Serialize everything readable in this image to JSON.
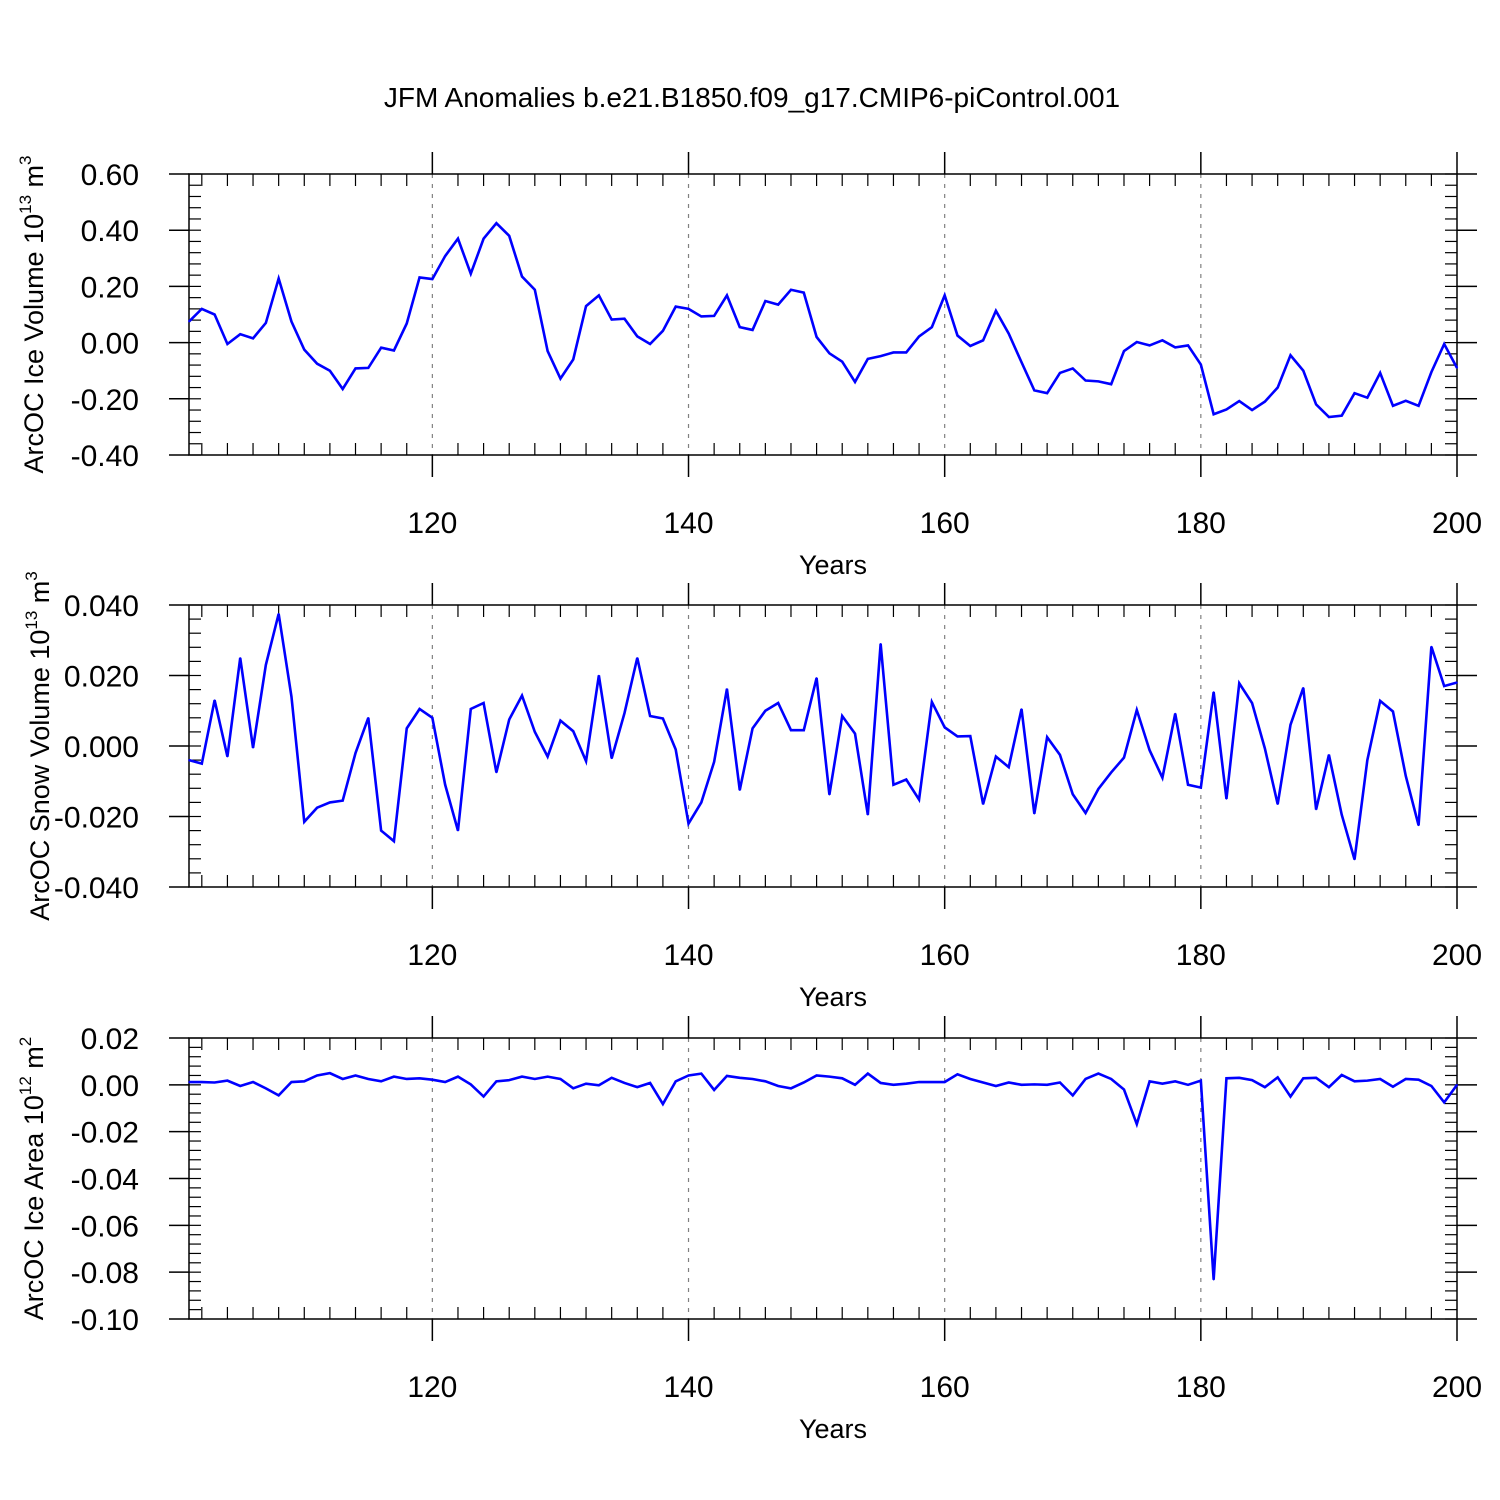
{
  "title": "JFM Anomalies b.e21.B1850.f09_g17.CMIP6-piControl.001",
  "colors": {
    "line": "#0000ff",
    "axis": "#000000",
    "grid": "#808080"
  },
  "chart_data": [
    {
      "type": "line",
      "name": "panel-ice-volume",
      "ylabel": "ArcOC Ice Volume 10",
      "ylabel_exp": "13",
      "ylabel_unit": " m",
      "ylabel_unit_exp": "3",
      "xlabel": "Years",
      "xlim": [
        101,
        200
      ],
      "ylim": [
        -0.4,
        0.6
      ],
      "yticks": [
        -0.4,
        -0.2,
        0.0,
        0.2,
        0.4,
        0.6
      ],
      "ytick_labels": [
        "-0.40",
        "-0.20",
        "0.00",
        "0.20",
        "0.40",
        "0.60"
      ],
      "xticks": [
        120,
        140,
        160,
        180,
        200
      ],
      "xtick_labels": [
        "120",
        "140",
        "160",
        "180",
        "200"
      ],
      "grid_x": [
        120,
        140,
        160,
        180
      ],
      "x_start": 101,
      "values": [
        0.075,
        0.12,
        0.1,
        -0.005,
        0.03,
        0.015,
        0.07,
        0.228,
        0.075,
        -0.025,
        -0.075,
        -0.1,
        -0.165,
        -0.092,
        -0.09,
        -0.018,
        -0.028,
        0.068,
        0.232,
        0.226,
        0.308,
        0.37,
        0.245,
        0.37,
        0.425,
        0.38,
        0.235,
        0.188,
        -0.03,
        -0.128,
        -0.06,
        0.13,
        0.168,
        0.082,
        0.085,
        0.022,
        -0.005,
        0.042,
        0.128,
        0.12,
        0.093,
        0.095,
        0.168,
        0.055,
        0.045,
        0.148,
        0.135,
        0.188,
        0.178,
        0.02,
        -0.038,
        -0.068,
        -0.14,
        -0.058,
        -0.048,
        -0.035,
        -0.035,
        0.022,
        0.055,
        0.168,
        0.025,
        -0.012,
        0.008,
        0.113,
        0.032,
        -0.07,
        -0.17,
        -0.18,
        -0.108,
        -0.092,
        -0.135,
        -0.138,
        -0.148,
        -0.03,
        0.002,
        -0.01,
        0.008,
        -0.017,
        -0.01,
        -0.078,
        -0.255,
        -0.238,
        -0.208,
        -0.24,
        -0.21,
        -0.16,
        -0.045,
        -0.1,
        -0.22,
        -0.265,
        -0.26,
        -0.18,
        -0.196,
        -0.108,
        -0.225,
        -0.207,
        -0.225,
        -0.105,
        -0.005,
        -0.09
      ]
    },
    {
      "type": "line",
      "name": "panel-snow-volume",
      "ylabel": "ArcOC Snow Volume 10",
      "ylabel_exp": "13",
      "ylabel_unit": " m",
      "ylabel_unit_exp": "3",
      "xlabel": "Years",
      "xlim": [
        101,
        200
      ],
      "ylim": [
        -0.04,
        0.04
      ],
      "yticks": [
        -0.04,
        -0.02,
        0.0,
        0.02,
        0.04
      ],
      "ytick_labels": [
        "-0.040",
        "-0.020",
        "0.000",
        "0.020",
        "0.040"
      ],
      "xticks": [
        120,
        140,
        160,
        180,
        200
      ],
      "xtick_labels": [
        "120",
        "140",
        "160",
        "180",
        "200"
      ],
      "grid_x": [
        120,
        140,
        160,
        180
      ],
      "x_start": 101,
      "values": [
        -0.004,
        -0.005,
        0.013,
        -0.003,
        0.025,
        -0.0005,
        0.023,
        0.0375,
        0.014,
        -0.0215,
        -0.0175,
        -0.016,
        -0.0155,
        -0.002,
        0.008,
        -0.024,
        -0.027,
        0.005,
        0.0105,
        0.008,
        -0.011,
        -0.024,
        0.0105,
        0.0122,
        -0.0075,
        0.0075,
        0.0143,
        0.004,
        -0.003,
        0.0072,
        0.0042,
        -0.0043,
        0.02,
        -0.0035,
        0.0093,
        0.025,
        0.0085,
        0.0078,
        -0.001,
        -0.022,
        -0.016,
        -0.0045,
        0.0162,
        -0.0125,
        0.005,
        0.01,
        0.0122,
        0.0045,
        0.0045,
        0.0193,
        -0.0138,
        0.0085,
        0.0035,
        -0.0195,
        0.029,
        -0.011,
        -0.0095,
        -0.0152,
        0.0125,
        0.0053,
        0.0027,
        0.0028,
        -0.0165,
        -0.003,
        -0.006,
        0.0105,
        -0.0192,
        0.0025,
        -0.0025,
        -0.0137,
        -0.019,
        -0.0122,
        -0.0075,
        -0.0033,
        0.0102,
        -0.0012,
        -0.009,
        0.0092,
        -0.011,
        -0.0118,
        0.0153,
        -0.015,
        0.0178,
        0.0122,
        -0.0007,
        -0.0165,
        0.006,
        0.0165,
        -0.018,
        -0.0025,
        -0.0195,
        -0.0322,
        -0.004,
        0.0128,
        0.0098,
        -0.0085,
        -0.0225,
        0.0282,
        0.017,
        0.018
      ]
    },
    {
      "type": "line",
      "name": "panel-ice-area",
      "ylabel": "ArcOC Ice Area 10",
      "ylabel_exp": "12",
      "ylabel_unit": " m",
      "ylabel_unit_exp": "2",
      "xlabel": "Years",
      "xlim": [
        101,
        200
      ],
      "ylim": [
        -0.1,
        0.02
      ],
      "yticks": [
        -0.1,
        -0.08,
        -0.06,
        -0.04,
        -0.02,
        0.0,
        0.02
      ],
      "ytick_labels": [
        "-0.10",
        "-0.08",
        "-0.06",
        "-0.04",
        "-0.02",
        "0.00",
        "0.02"
      ],
      "xticks": [
        120,
        140,
        160,
        180,
        200
      ],
      "xtick_labels": [
        "120",
        "140",
        "160",
        "180",
        "200"
      ],
      "grid_x": [
        120,
        140,
        160,
        180
      ],
      "x_start": 101,
      "values": [
        0.0012,
        0.0012,
        0.001,
        0.0018,
        -0.0005,
        0.0012,
        -0.0015,
        -0.0045,
        0.0012,
        0.0015,
        0.004,
        0.005,
        0.0025,
        0.004,
        0.0025,
        0.0015,
        0.0035,
        0.0025,
        0.0028,
        0.0022,
        0.0012,
        0.0035,
        0.0002,
        -0.005,
        0.0015,
        0.002,
        0.0035,
        0.0025,
        0.0035,
        0.0025,
        -0.0015,
        0.0005,
        -0.0002,
        0.003,
        0.0008,
        -0.001,
        0.0008,
        -0.0082,
        0.0015,
        0.004,
        0.0048,
        -0.0022,
        0.0038,
        0.003,
        0.0025,
        0.0015,
        -0.0005,
        -0.0015,
        0.001,
        0.004,
        0.0035,
        0.0028,
        0.0,
        0.0048,
        0.0008,
        0.0,
        0.0005,
        0.0012,
        0.0012,
        0.0012,
        0.0045,
        0.0025,
        0.001,
        -0.0005,
        0.001,
        0.0,
        0.0002,
        0.0,
        0.001,
        -0.0045,
        0.0025,
        0.0048,
        0.0025,
        -0.002,
        -0.0168,
        0.0015,
        0.0005,
        0.0015,
        0.0,
        0.0018,
        -0.0832,
        0.0028,
        0.003,
        0.002,
        -0.001,
        0.0032,
        -0.005,
        0.0028,
        0.003,
        -0.001,
        0.0042,
        0.0015,
        0.0018,
        0.0025,
        -0.0008,
        0.0025,
        0.0022,
        -0.0005,
        -0.0075,
        0.0
      ]
    }
  ]
}
